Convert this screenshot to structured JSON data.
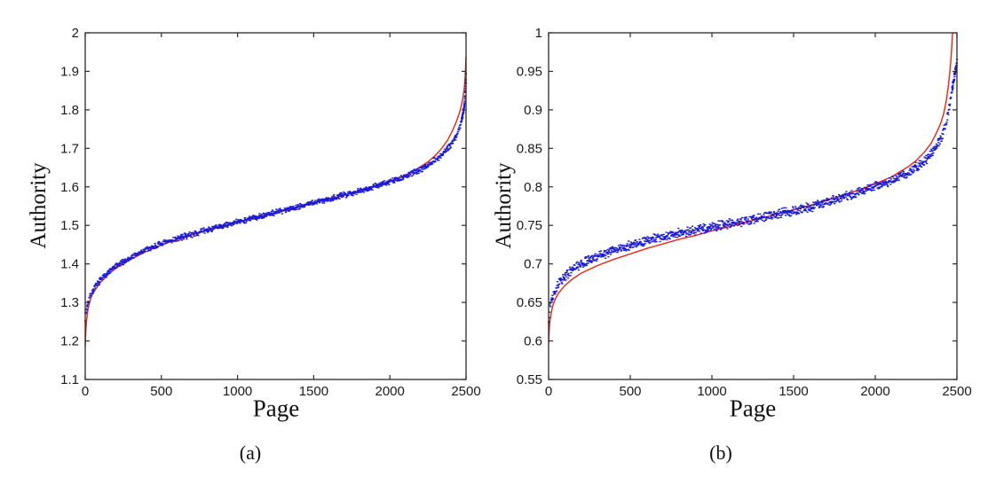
{
  "figure": {
    "captions": [
      {
        "label": "(a)"
      },
      {
        "label": "(b)"
      }
    ]
  },
  "chart_data": [
    {
      "type": "scatter",
      "panel": "a",
      "title": "",
      "xlabel": "Page",
      "ylabel": "Authority",
      "xlim": [
        0,
        2500
      ],
      "ylim": [
        1.1,
        2
      ],
      "xticks": [
        0,
        500,
        1000,
        1500,
        2000,
        2500
      ],
      "yticks": [
        1.1,
        1.2,
        1.3,
        1.4,
        1.5,
        1.6,
        1.7,
        1.8,
        1.9,
        2
      ],
      "grid": false,
      "legend": null,
      "box": true,
      "axis_color": "#2a2a2a",
      "series": [
        {
          "name": "fitted-curve",
          "type": "line",
          "color": "#ee2211",
          "width": 1.4,
          "anchors": [
            [
              0,
              1.185
            ],
            [
              3,
              1.22
            ],
            [
              8,
              1.25
            ],
            [
              15,
              1.275
            ],
            [
              25,
              1.295
            ],
            [
              40,
              1.315
            ],
            [
              60,
              1.33
            ],
            [
              100,
              1.352
            ],
            [
              150,
              1.372
            ],
            [
              200,
              1.388
            ],
            [
              250,
              1.4
            ],
            [
              300,
              1.412
            ],
            [
              400,
              1.432
            ],
            [
              500,
              1.449
            ],
            [
              600,
              1.463
            ],
            [
              700,
              1.475
            ],
            [
              800,
              1.487
            ],
            [
              900,
              1.497
            ],
            [
              1000,
              1.508
            ],
            [
              1100,
              1.518
            ],
            [
              1200,
              1.528
            ],
            [
              1300,
              1.538
            ],
            [
              1400,
              1.548
            ],
            [
              1500,
              1.558
            ],
            [
              1600,
              1.568
            ],
            [
              1700,
              1.578
            ],
            [
              1800,
              1.59
            ],
            [
              1900,
              1.602
            ],
            [
              2000,
              1.615
            ],
            [
              2100,
              1.63
            ],
            [
              2150,
              1.64
            ],
            [
              2200,
              1.652
            ],
            [
              2250,
              1.665
            ],
            [
              2300,
              1.682
            ],
            [
              2340,
              1.7
            ],
            [
              2380,
              1.722
            ],
            [
              2410,
              1.745
            ],
            [
              2435,
              1.768
            ],
            [
              2455,
              1.79
            ],
            [
              2470,
              1.812
            ],
            [
              2480,
              1.832
            ],
            [
              2488,
              1.855
            ],
            [
              2493,
              1.878
            ],
            [
              2496,
              1.9
            ],
            [
              2498,
              1.92
            ],
            [
              2500,
              1.937
            ]
          ]
        },
        {
          "name": "authority-scatter",
          "type": "scatter",
          "color": "#1a1ad4",
          "n_points": 1250,
          "noise": 0.009,
          "tail_noise": 0.006,
          "tail_extra": 34,
          "seed": 7,
          "anchors": [
            [
              0,
              1.26
            ],
            [
              5,
              1.275
            ],
            [
              15,
              1.295
            ],
            [
              30,
              1.315
            ],
            [
              60,
              1.337
            ],
            [
              100,
              1.358
            ],
            [
              150,
              1.378
            ],
            [
              200,
              1.393
            ],
            [
              250,
              1.405
            ],
            [
              300,
              1.417
            ],
            [
              400,
              1.437
            ],
            [
              500,
              1.452
            ],
            [
              600,
              1.465
            ],
            [
              700,
              1.477
            ],
            [
              800,
              1.488
            ],
            [
              900,
              1.498
            ],
            [
              1000,
              1.509
            ],
            [
              1100,
              1.519
            ],
            [
              1200,
              1.529
            ],
            [
              1300,
              1.539
            ],
            [
              1400,
              1.549
            ],
            [
              1500,
              1.559
            ],
            [
              1600,
              1.569
            ],
            [
              1700,
              1.579
            ],
            [
              1800,
              1.59
            ],
            [
              1900,
              1.601
            ],
            [
              2000,
              1.613
            ],
            [
              2100,
              1.626
            ],
            [
              2200,
              1.645
            ],
            [
              2300,
              1.67
            ],
            [
              2350,
              1.687
            ],
            [
              2400,
              1.71
            ],
            [
              2440,
              1.735
            ],
            [
              2460,
              1.757
            ],
            [
              2475,
              1.78
            ],
            [
              2485,
              1.8
            ],
            [
              2492,
              1.825
            ],
            [
              2496,
              1.85
            ],
            [
              2499,
              1.878
            ],
            [
              2500,
              1.893
            ]
          ]
        }
      ]
    },
    {
      "type": "scatter",
      "panel": "b",
      "title": "",
      "xlabel": "Page",
      "ylabel": "Authority",
      "xlim": [
        0,
        2500
      ],
      "ylim": [
        0.55,
        1
      ],
      "xticks": [
        0,
        500,
        1000,
        1500,
        2000,
        2500
      ],
      "yticks": [
        0.55,
        0.6,
        0.65,
        0.7,
        0.75,
        0.8,
        0.85,
        0.9,
        0.95,
        1
      ],
      "grid": false,
      "legend": null,
      "box": true,
      "axis_color": "#2a2a2a",
      "series": [
        {
          "name": "fitted-curve",
          "type": "line",
          "color": "#ee2211",
          "width": 1.4,
          "anchors": [
            [
              0,
              0.597
            ],
            [
              3,
              0.612
            ],
            [
              8,
              0.625
            ],
            [
              15,
              0.635
            ],
            [
              25,
              0.645
            ],
            [
              40,
              0.654
            ],
            [
              60,
              0.662
            ],
            [
              100,
              0.672
            ],
            [
              150,
              0.681
            ],
            [
              200,
              0.688
            ],
            [
              300,
              0.698
            ],
            [
              400,
              0.706
            ],
            [
              500,
              0.713
            ],
            [
              600,
              0.72
            ],
            [
              700,
              0.726
            ],
            [
              800,
              0.732
            ],
            [
              900,
              0.737
            ],
            [
              1000,
              0.743
            ],
            [
              1100,
              0.748
            ],
            [
              1200,
              0.754
            ],
            [
              1300,
              0.759
            ],
            [
              1400,
              0.765
            ],
            [
              1500,
              0.77
            ],
            [
              1600,
              0.776
            ],
            [
              1700,
              0.782
            ],
            [
              1800,
              0.789
            ],
            [
              1900,
              0.796
            ],
            [
              2000,
              0.804
            ],
            [
              2100,
              0.813
            ],
            [
              2200,
              0.826
            ],
            [
              2250,
              0.834
            ],
            [
              2300,
              0.845
            ],
            [
              2340,
              0.856
            ],
            [
              2370,
              0.868
            ],
            [
              2400,
              0.882
            ],
            [
              2420,
              0.896
            ],
            [
              2435,
              0.912
            ],
            [
              2447,
              0.93
            ],
            [
              2456,
              0.948
            ],
            [
              2463,
              0.965
            ],
            [
              2468,
              0.98
            ],
            [
              2471,
              0.993
            ],
            [
              2473,
              1.0
            ]
          ]
        },
        {
          "name": "authority-scatter",
          "type": "scatter",
          "color": "#1a1ad4",
          "n_points": 1250,
          "noise": 0.007,
          "tail_noise": 0.005,
          "tail_extra": 34,
          "seed": 13,
          "anchors": [
            [
              0,
              0.625
            ],
            [
              5,
              0.64
            ],
            [
              15,
              0.652
            ],
            [
              30,
              0.662
            ],
            [
              60,
              0.674
            ],
            [
              100,
              0.684
            ],
            [
              150,
              0.693
            ],
            [
              200,
              0.7
            ],
            [
              300,
              0.71
            ],
            [
              400,
              0.718
            ],
            [
              500,
              0.724
            ],
            [
              600,
              0.73
            ],
            [
              700,
              0.735
            ],
            [
              800,
              0.74
            ],
            [
              900,
              0.744
            ],
            [
              1000,
              0.748
            ],
            [
              1100,
              0.752
            ],
            [
              1200,
              0.756
            ],
            [
              1300,
              0.76
            ],
            [
              1400,
              0.765
            ],
            [
              1500,
              0.769
            ],
            [
              1600,
              0.774
            ],
            [
              1700,
              0.78
            ],
            [
              1800,
              0.786
            ],
            [
              1900,
              0.793
            ],
            [
              2000,
              0.8
            ],
            [
              2100,
              0.808
            ],
            [
              2200,
              0.818
            ],
            [
              2300,
              0.833
            ],
            [
              2350,
              0.845
            ],
            [
              2400,
              0.862
            ],
            [
              2430,
              0.88
            ],
            [
              2450,
              0.9
            ],
            [
              2465,
              0.918
            ],
            [
              2478,
              0.935
            ],
            [
              2490,
              0.95
            ],
            [
              2497,
              0.958
            ],
            [
              2500,
              0.962
            ]
          ]
        }
      ]
    }
  ]
}
